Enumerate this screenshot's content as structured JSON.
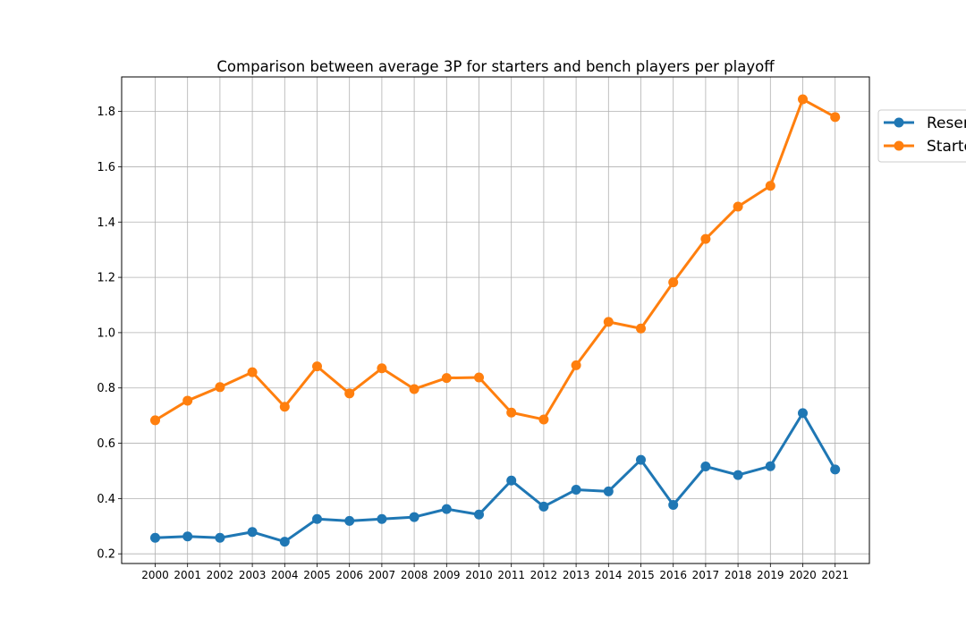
{
  "chart_data": {
    "type": "line",
    "title": "Comparison between average 3P for starters and bench players per playoff",
    "xlabel": "",
    "ylabel": "",
    "categories": [
      "2000",
      "2001",
      "2002",
      "2003",
      "2004",
      "2005",
      "2006",
      "2007",
      "2008",
      "2009",
      "2010",
      "2011",
      "2012",
      "2013",
      "2014",
      "2015",
      "2016",
      "2017",
      "2018",
      "2019",
      "2020",
      "2021"
    ],
    "y_ticks": [
      0.2,
      0.4,
      0.6,
      0.8,
      1.0,
      1.2,
      1.4,
      1.6,
      1.8
    ],
    "ylim": [
      0.165,
      1.925
    ],
    "grid": true,
    "legend_position": "right (outside, clipped)",
    "series": [
      {
        "name": "Reserves",
        "color": "#1f77b4",
        "values": [
          0.258,
          0.263,
          0.258,
          0.279,
          0.244,
          0.326,
          0.319,
          0.326,
          0.333,
          0.362,
          0.342,
          0.465,
          0.371,
          0.432,
          0.426,
          0.54,
          0.377,
          0.516,
          0.485,
          0.517,
          0.709,
          0.505
        ]
      },
      {
        "name": "Starters",
        "color": "#ff7f0e",
        "values": [
          0.683,
          0.754,
          0.803,
          0.857,
          0.732,
          0.878,
          0.78,
          0.871,
          0.796,
          0.836,
          0.838,
          0.711,
          0.686,
          0.882,
          1.039,
          1.015,
          1.182,
          1.339,
          1.456,
          1.531,
          1.844,
          1.78
        ]
      }
    ]
  }
}
